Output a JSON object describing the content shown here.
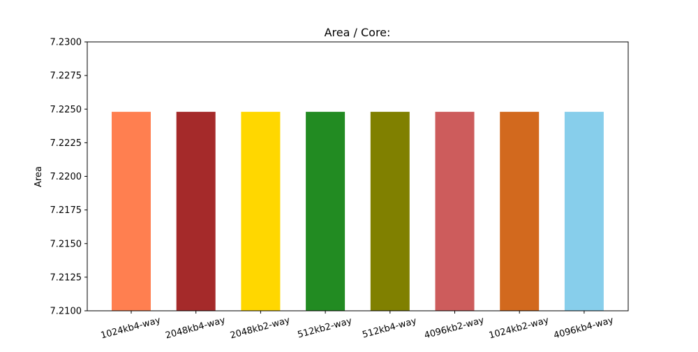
{
  "chart_data": {
    "type": "bar",
    "title": "Area / Core:",
    "xlabel": "",
    "ylabel": "Area",
    "ylim": [
      7.21,
      7.23
    ],
    "yticks": [
      "7.2100",
      "7.2125",
      "7.2150",
      "7.2175",
      "7.2200",
      "7.2225",
      "7.2250",
      "7.2275",
      "7.2300"
    ],
    "categories": [
      "1024kb4-way",
      "2048kb4-way",
      "2048kb2-way",
      "512kb2-way",
      "512kb4-way",
      "4096kb2-way",
      "1024kb2-way",
      "4096kb4-way"
    ],
    "values": [
      7.2248,
      7.2248,
      7.2248,
      7.2248,
      7.2248,
      7.2248,
      7.2248,
      7.2248
    ],
    "colors": [
      "#ff7f50",
      "#a52a2a",
      "#ffd700",
      "#228b22",
      "#808000",
      "#cd5c5c",
      "#d2691e",
      "#87ceeb"
    ],
    "grid": false,
    "legend": "none"
  }
}
